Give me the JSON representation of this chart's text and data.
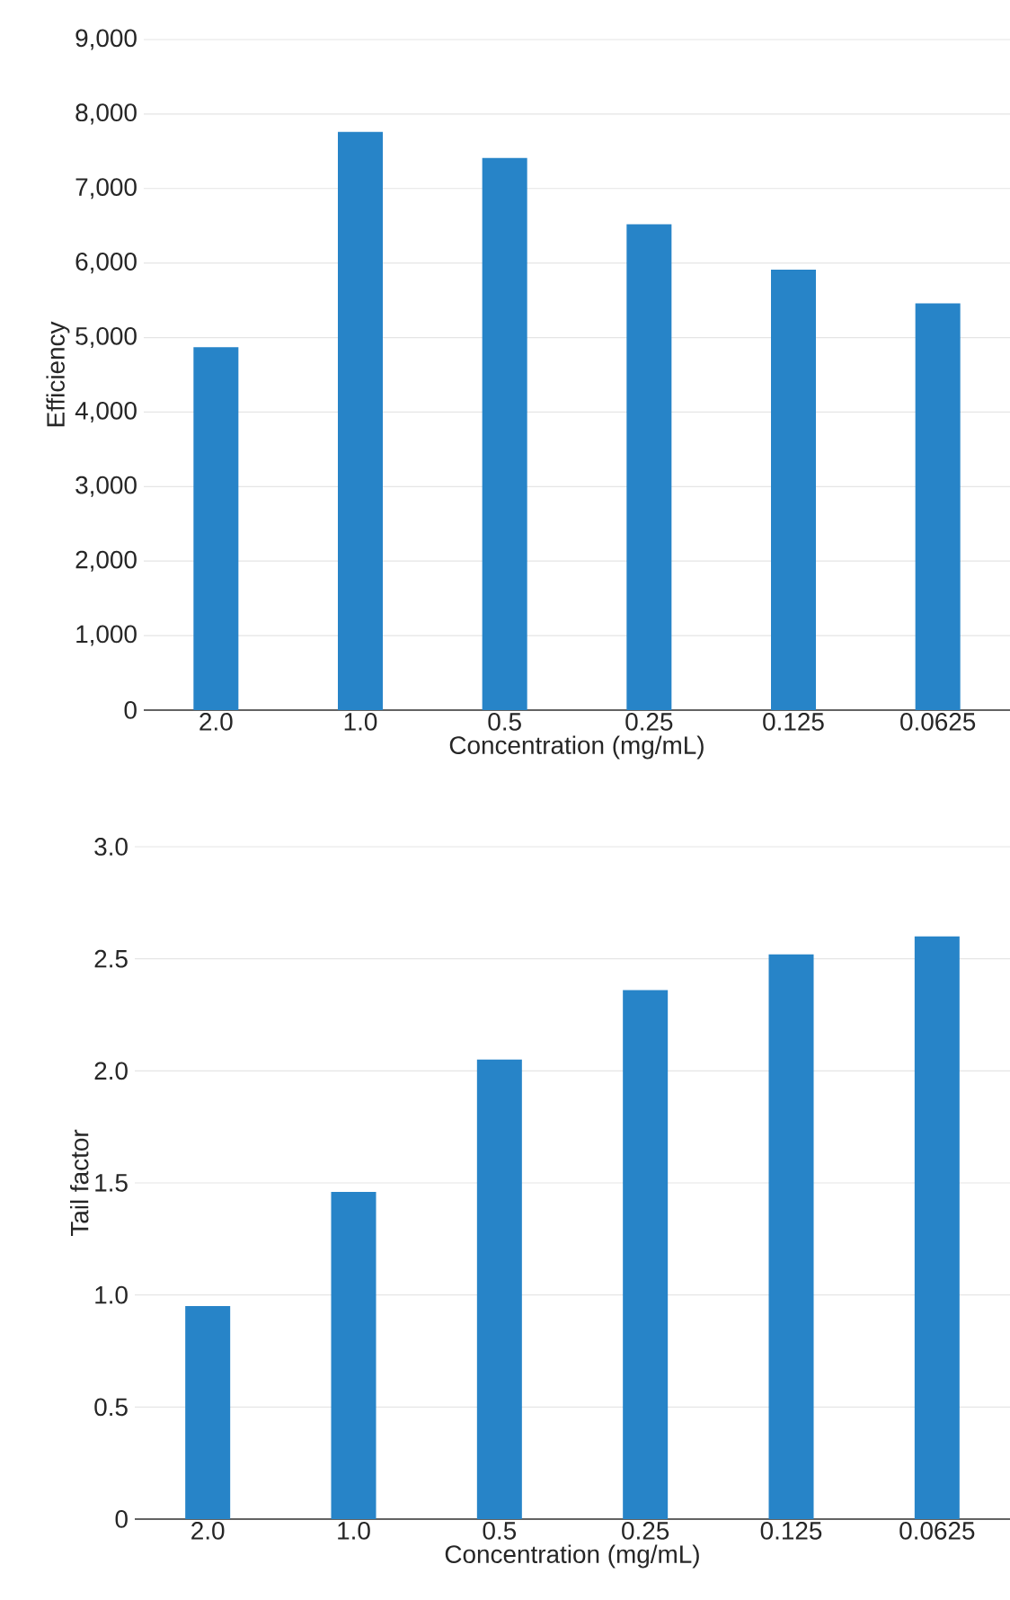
{
  "chart_data": [
    {
      "type": "bar",
      "ylabel": "Efficiency",
      "xlabel": "Concentration (mg/mL)",
      "categories": [
        "2.0",
        "1.0",
        "0.5",
        "0.25",
        "0.125",
        "0.0625"
      ],
      "values": [
        4870,
        7760,
        7410,
        6520,
        5910,
        5460
      ],
      "color": "#2784c8",
      "ylim": [
        0,
        9000
      ],
      "yticks": [
        0,
        {
          "value": 1000,
          "label": "1,000"
        },
        {
          "value": 2000,
          "label": "2,000"
        },
        {
          "value": 3000,
          "label": "3,000"
        },
        {
          "value": 4000,
          "label": "4,000"
        },
        {
          "value": 5000,
          "label": "5,000"
        },
        {
          "value": 6000,
          "label": "6,000"
        },
        {
          "value": 7000,
          "label": "7,000"
        },
        {
          "value": 8000,
          "label": "8,000"
        },
        {
          "value": 9000,
          "label": "9,000"
        }
      ],
      "grid": "y"
    },
    {
      "type": "bar",
      "ylabel": "Tail factor",
      "xlabel": "Concentration (mg/mL)",
      "categories": [
        "2.0",
        "1.0",
        "0.5",
        "0.25",
        "0.125",
        "0.0625"
      ],
      "values": [
        0.95,
        1.46,
        2.05,
        2.36,
        2.52,
        2.6
      ],
      "color": "#2784c8",
      "ylim": [
        0,
        3.0
      ],
      "yticks": [
        0,
        {
          "value": 0.5,
          "label": "0.5"
        },
        {
          "value": 1.0,
          "label": "1.0"
        },
        {
          "value": 1.5,
          "label": "1.5"
        },
        {
          "value": 2.0,
          "label": "2.0"
        },
        {
          "value": 2.5,
          "label": "2.5"
        },
        {
          "value": 3.0,
          "label": "3.0"
        }
      ],
      "grid": "y"
    }
  ]
}
